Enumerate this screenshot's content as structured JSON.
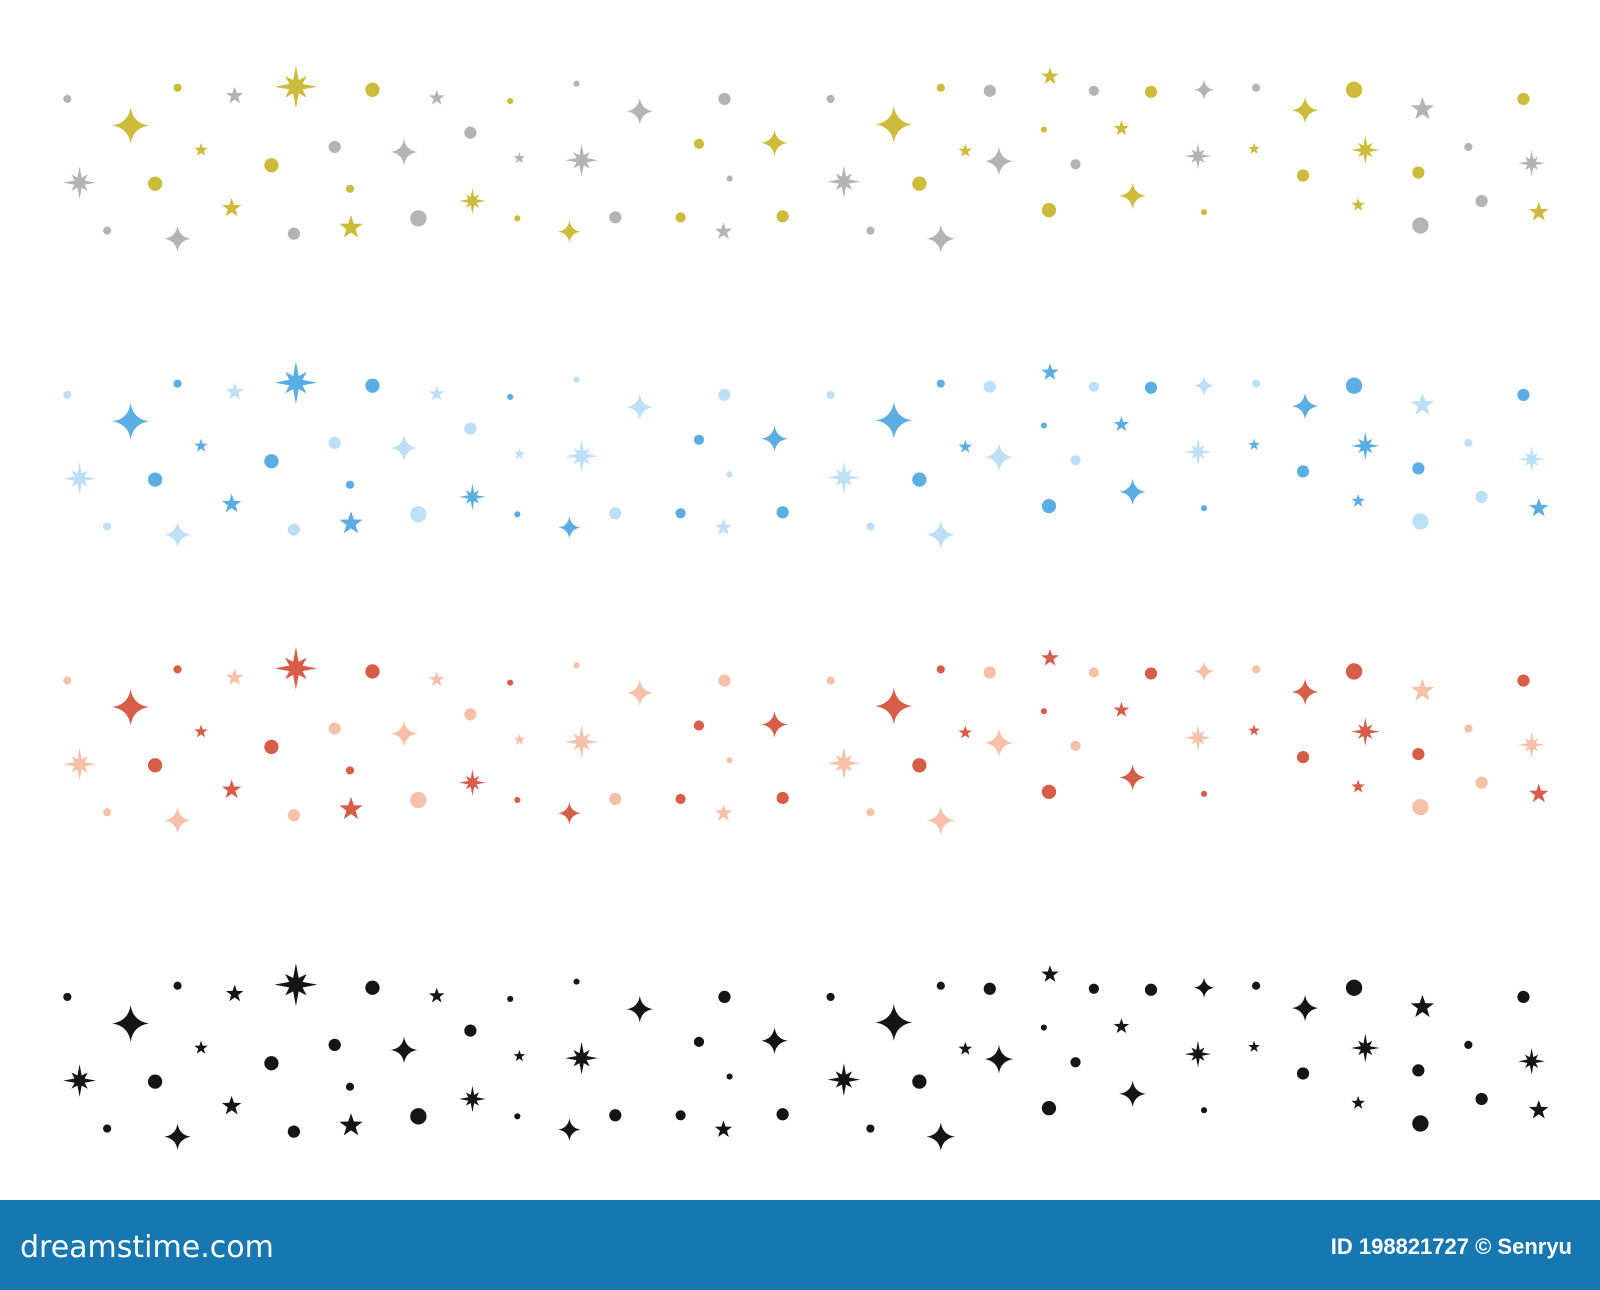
{
  "footer": {
    "logo": "dreamstime.com",
    "credit": "ID 198821727 © Senryu"
  }
}
